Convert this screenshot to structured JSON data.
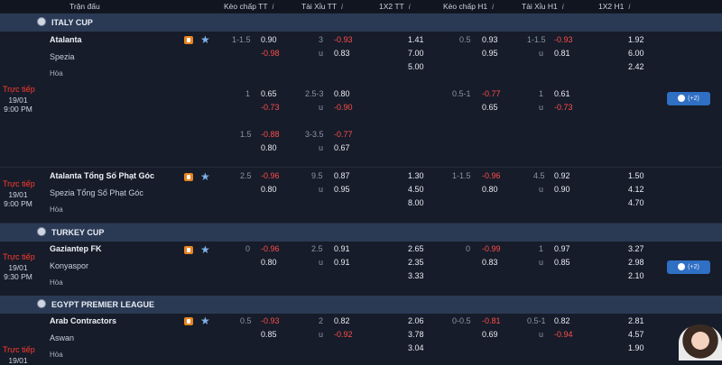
{
  "header": {
    "match": "Trận đấu",
    "hdp_ft": "Kèo chấp TT",
    "ou_ft": "Tài Xỉu TT",
    "x12_ft": "1X2 TT",
    "hdp_h1": "Kèo chấp H1",
    "ou_h1": "Tài Xỉu H1",
    "x12_h1": "1X2 H1",
    "info": "i"
  },
  "leagues": [
    {
      "name": "ITALY CUP"
    },
    {
      "name": "TURKEY CUP"
    },
    {
      "name": "EGYPT PREMIER LEAGUE"
    }
  ],
  "matches": [
    {
      "home": "Atalanta",
      "away": "Spezia",
      "draw": "Hòa",
      "status": "Trực tiếp",
      "date": "19/01",
      "time": "9:00 PM",
      "more": "(+2)",
      "rows": [
        {
          "a1": "1-1.5",
          "a2": "0.90",
          "a3": "-0.98",
          "b1": "3",
          "b2": "-0.93",
          "b3": "u",
          "b4": "0.83",
          "x1": "1.41",
          "x2": "7.00",
          "x3": "5.00",
          "c1": "0.5",
          "c2": "0.93",
          "c3": "0.95",
          "d1": "1-1.5",
          "d2": "-0.93",
          "d3": "u",
          "d4": "0.81",
          "y1": "1.92",
          "y2": "6.00",
          "y3": "2.42"
        },
        {
          "a1": "1",
          "a2": "0.65",
          "a3": "-0.73",
          "b1": "2.5-3",
          "b2": "0.80",
          "b3": "u",
          "b4": "-0.90",
          "c1": "0.5-1",
          "c2": "-0.77",
          "c3": "0.65",
          "d1": "1",
          "d2": "0.61",
          "d3": "u",
          "d4": "-0.73"
        },
        {
          "a1": "1.5",
          "a2": "-0.88",
          "a3": "0.80",
          "b1": "3-3.5",
          "b2": "-0.77",
          "b3": "u",
          "b4": "0.67"
        }
      ]
    },
    {
      "home": "Atalanta Tổng Số Phạt Góc",
      "away": "Spezia Tổng Số Phạt Góc",
      "draw": "Hòa",
      "status": "Trực tiếp",
      "date": "19/01",
      "time": "9:00 PM",
      "a1": "2.5",
      "a2": "-0.96",
      "a3": "0.80",
      "b1": "9.5",
      "b2": "0.87",
      "b3": "u",
      "b4": "0.95",
      "x1": "1.30",
      "x2": "4.50",
      "x3": "8.00",
      "c1": "1-1.5",
      "c2": "-0.96",
      "c3": "0.80",
      "d1": "4.5",
      "d2": "0.92",
      "d3": "u",
      "d4": "0.90",
      "y1": "1.50",
      "y2": "4.12",
      "y3": "4.70"
    },
    {
      "home": "Gaziantep FK",
      "away": "Konyaspor",
      "draw": "Hòa",
      "status": "Trực tiếp",
      "date": "19/01",
      "time": "9:30 PM",
      "more": "(+2)",
      "a1": "0",
      "a2": "-0.96",
      "a3": "0.80",
      "b1": "2.5",
      "b2": "0.91",
      "b3": "u",
      "b4": "0.91",
      "x1": "2.65",
      "x2": "2.35",
      "x3": "3.33",
      "c1": "0",
      "c2": "-0.99",
      "c3": "0.83",
      "d1": "1",
      "d2": "0.97",
      "d3": "u",
      "d4": "0.85",
      "y1": "3.27",
      "y2": "2.98",
      "y3": "2.10"
    },
    {
      "home": "Arab Contractors",
      "away": "Aswan",
      "draw": "Hòa",
      "status": "Trực tiếp",
      "date": "19/01",
      "a1": "0.5",
      "a2": "-0.93",
      "a3": "0.85",
      "b1": "2",
      "b2": "0.82",
      "b3": "u",
      "b4": "-0.92",
      "x1": "2.06",
      "x2": "3.78",
      "x3": "3.04",
      "c1": "0-0.5",
      "c2": "-0.81",
      "c3": "0.69",
      "d1": "0.5-1",
      "d2": "0.82",
      "d3": "u",
      "d4": "-0.94",
      "y1": "2.81",
      "y2": "4.57",
      "y3": "1.90"
    }
  ]
}
